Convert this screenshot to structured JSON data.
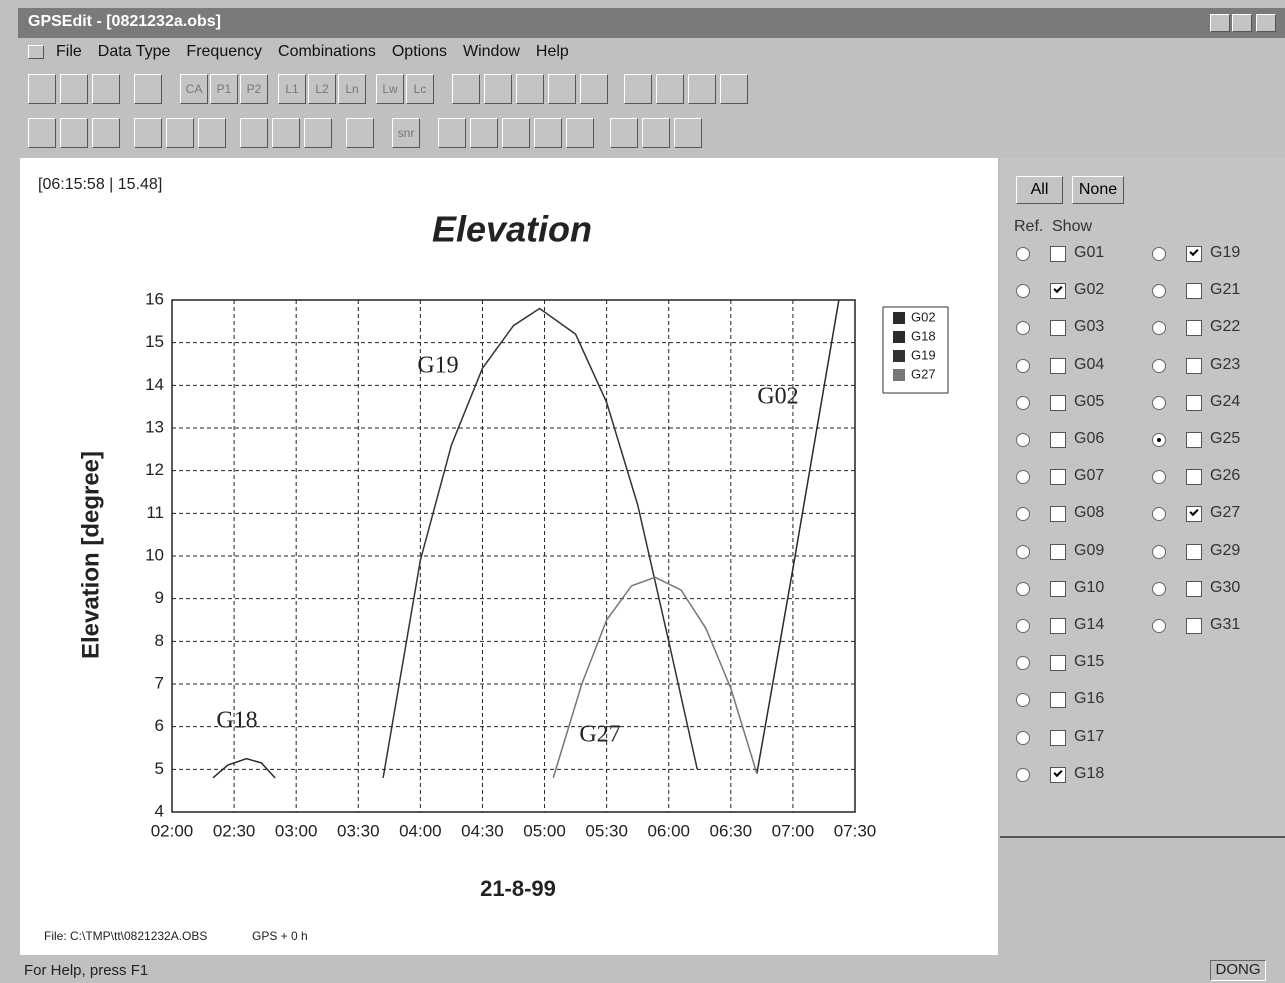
{
  "window": {
    "title": "GPSEdit - [0821232a.obs]"
  },
  "menu": [
    "File",
    "Data Type",
    "Frequency",
    "Combinations",
    "Options",
    "Window",
    "Help"
  ],
  "toolbar": {
    "row1": [
      "CA",
      "P1",
      "P2",
      "L1",
      "L2",
      "Ln",
      "Lw",
      "Lc"
    ],
    "row2": [
      "snr"
    ]
  },
  "chart_data": {
    "type": "line",
    "title": "Elevation",
    "readout": "[06:15:58 | 15.48]",
    "y_label": "Elevation [degree]",
    "x_label": "21-8-99",
    "footer_file": "File: C:\\TMP\\tt\\0821232A.OBS",
    "footer_time": "GPS + 0 h",
    "xlim": [
      2,
      7.5
    ],
    "ylim": [
      4,
      16
    ],
    "xticks": [
      {
        "value": 2,
        "label": "02:00"
      },
      {
        "value": 2.5,
        "label": "02:30"
      },
      {
        "value": 3,
        "label": "03:00"
      },
      {
        "value": 3.5,
        "label": "03:30"
      },
      {
        "value": 4,
        "label": "04:00"
      },
      {
        "value": 4.5,
        "label": "04:30"
      },
      {
        "value": 5,
        "label": "05:00"
      },
      {
        "value": 5.5,
        "label": "05:30"
      },
      {
        "value": 6,
        "label": "06:00"
      },
      {
        "value": 6.5,
        "label": "06:30"
      },
      {
        "value": 7,
        "label": "07:00"
      },
      {
        "value": 7.5,
        "label": "07:30"
      }
    ],
    "yticks": [
      4,
      5,
      6,
      7,
      8,
      9,
      10,
      11,
      12,
      13,
      14,
      15,
      16
    ],
    "grid": true,
    "series": [
      {
        "name": "G02",
        "color": "#2a2a2a",
        "x": [
          6.71,
          7.0,
          7.37
        ],
        "values": [
          4.9,
          9.7,
          16
        ]
      },
      {
        "name": "G18",
        "color": "#2a2a2a",
        "x": [
          2.33,
          2.45,
          2.6,
          2.72,
          2.83
        ],
        "values": [
          4.8,
          5.1,
          5.25,
          5.15,
          4.8
        ]
      },
      {
        "name": "G19",
        "color": "#333333",
        "x": [
          3.7,
          4.0,
          4.25,
          4.5,
          4.75,
          4.96,
          5.25,
          5.5,
          5.75,
          6.0,
          6.23
        ],
        "values": [
          4.8,
          9.9,
          12.6,
          14.4,
          15.4,
          15.8,
          15.2,
          13.6,
          11.2,
          8.0,
          5.0
        ]
      },
      {
        "name": "G27",
        "color": "#777777",
        "x": [
          5.07,
          5.3,
          5.5,
          5.7,
          5.89,
          6.1,
          6.3,
          6.5,
          6.71
        ],
        "values": [
          4.8,
          7.0,
          8.5,
          9.3,
          9.5,
          9.2,
          8.3,
          6.9,
          4.9
        ]
      }
    ],
    "annotations": [
      "G19",
      "G02",
      "G18",
      "G27"
    ]
  },
  "panel": {
    "all_button": "All",
    "none_button": "None",
    "ref_header": "Ref.",
    "show_header": "Show",
    "satellites": [
      {
        "name": "G01",
        "show": false,
        "ref": false
      },
      {
        "name": "G02",
        "show": true,
        "ref": false
      },
      {
        "name": "G03",
        "show": false,
        "ref": false
      },
      {
        "name": "G04",
        "show": false,
        "ref": false
      },
      {
        "name": "G05",
        "show": false,
        "ref": false
      },
      {
        "name": "G06",
        "show": false,
        "ref": false
      },
      {
        "name": "G07",
        "show": false,
        "ref": false
      },
      {
        "name": "G08",
        "show": false,
        "ref": false
      },
      {
        "name": "G09",
        "show": false,
        "ref": false
      },
      {
        "name": "G10",
        "show": false,
        "ref": false
      },
      {
        "name": "G14",
        "show": false,
        "ref": false
      },
      {
        "name": "G15",
        "show": false,
        "ref": false
      },
      {
        "name": "G16",
        "show": false,
        "ref": false
      },
      {
        "name": "G17",
        "show": false,
        "ref": false
      },
      {
        "name": "G18",
        "show": true,
        "ref": false
      },
      {
        "name": "G19",
        "show": true,
        "ref": false
      },
      {
        "name": "G21",
        "show": false,
        "ref": false
      },
      {
        "name": "G22",
        "show": false,
        "ref": false
      },
      {
        "name": "G23",
        "show": false,
        "ref": false
      },
      {
        "name": "G24",
        "show": false,
        "ref": false
      },
      {
        "name": "G25",
        "show": false,
        "ref": true
      },
      {
        "name": "G26",
        "show": false,
        "ref": false
      },
      {
        "name": "G27",
        "show": true,
        "ref": false
      },
      {
        "name": "G29",
        "show": false,
        "ref": false
      },
      {
        "name": "G30",
        "show": false,
        "ref": false
      },
      {
        "name": "G31",
        "show": false,
        "ref": false
      }
    ]
  },
  "status": {
    "text": "For Help, press F1",
    "user": "DONG"
  }
}
